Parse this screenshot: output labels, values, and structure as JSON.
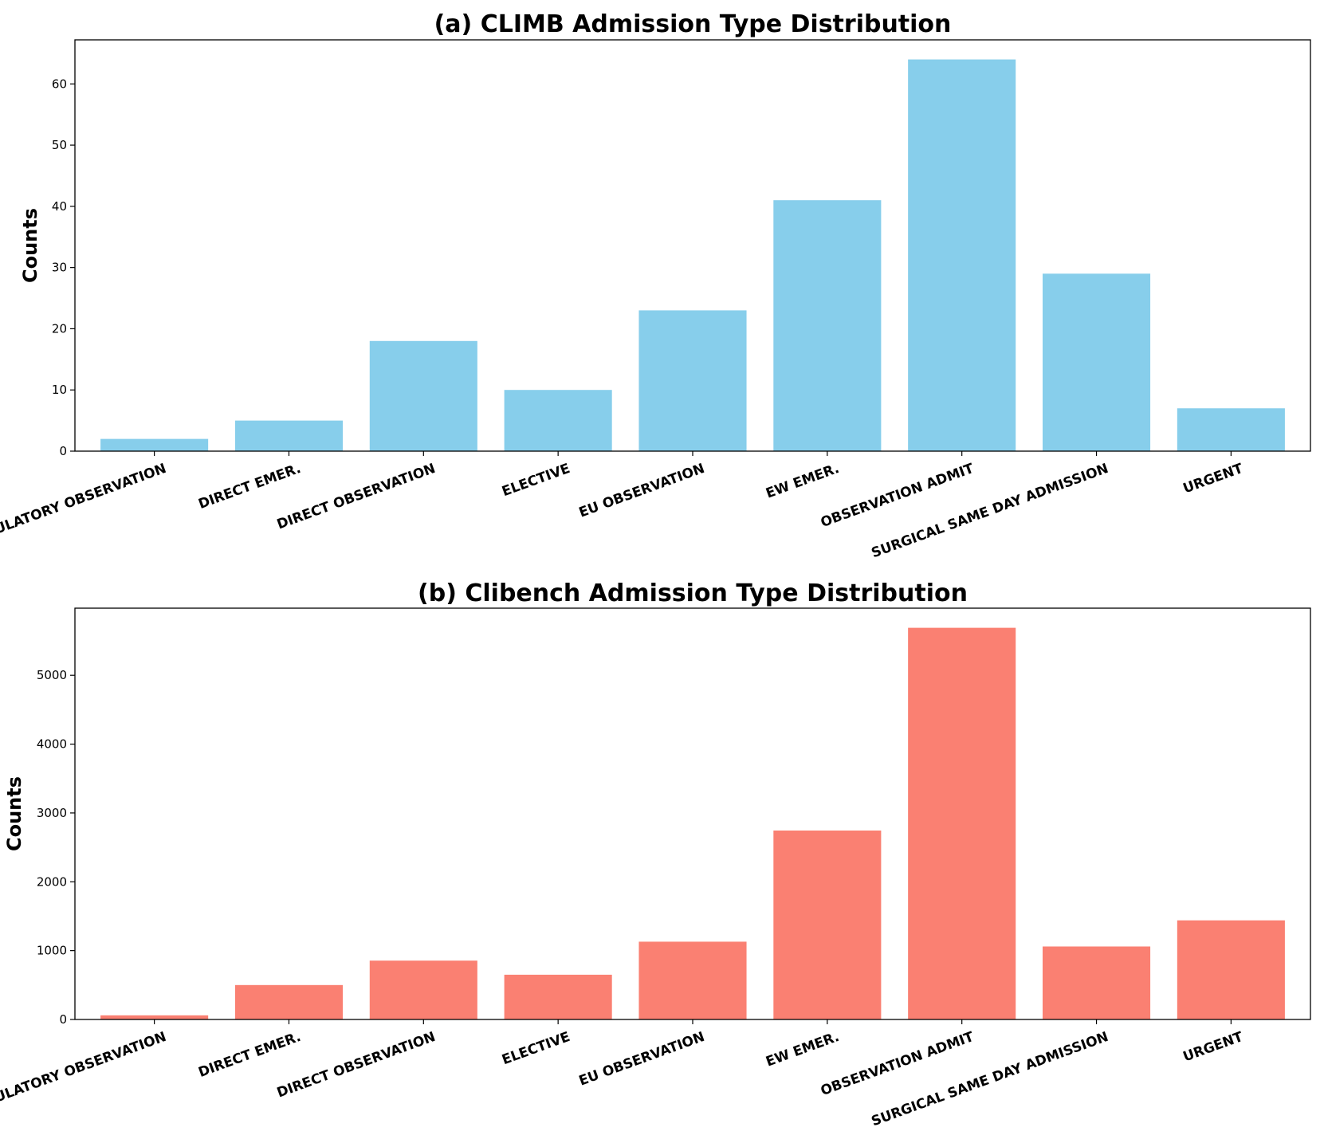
{
  "chart_data": [
    {
      "type": "bar",
      "title": "(a) CLIMB Admission Type Distribution",
      "xlabel": "",
      "ylabel": "Counts",
      "categories": [
        "AMBULATORY OBSERVATION",
        "DIRECT EMER.",
        "DIRECT OBSERVATION",
        "ELECTIVE",
        "EU OBSERVATION",
        "EW EMER.",
        "OBSERVATION ADMIT",
        "SURGICAL SAME DAY ADMISSION",
        "URGENT"
      ],
      "values": [
        2,
        5,
        18,
        10,
        23,
        41,
        64,
        29,
        7
      ],
      "yticks": [
        0,
        10,
        20,
        30,
        40,
        50,
        60
      ],
      "ylim": [
        0,
        67.2
      ],
      "color": "#87CEEB",
      "grid": false
    },
    {
      "type": "bar",
      "title": "(b) Clibench Admission Type Distribution",
      "xlabel": "",
      "ylabel": "Counts",
      "categories": [
        "AMBULATORY OBSERVATION",
        "DIRECT EMER.",
        "DIRECT OBSERVATION",
        "ELECTIVE",
        "EU OBSERVATION",
        "EW EMER.",
        "OBSERVATION ADMIT",
        "SURGICAL SAME DAY ADMISSION",
        "URGENT"
      ],
      "values": [
        60,
        500,
        855,
        650,
        1130,
        2745,
        5690,
        1060,
        1440
      ],
      "yticks": [
        0,
        1000,
        2000,
        3000,
        4000,
        5000
      ],
      "ylim": [
        0,
        5975
      ],
      "color": "#FA8072",
      "grid": false
    }
  ]
}
